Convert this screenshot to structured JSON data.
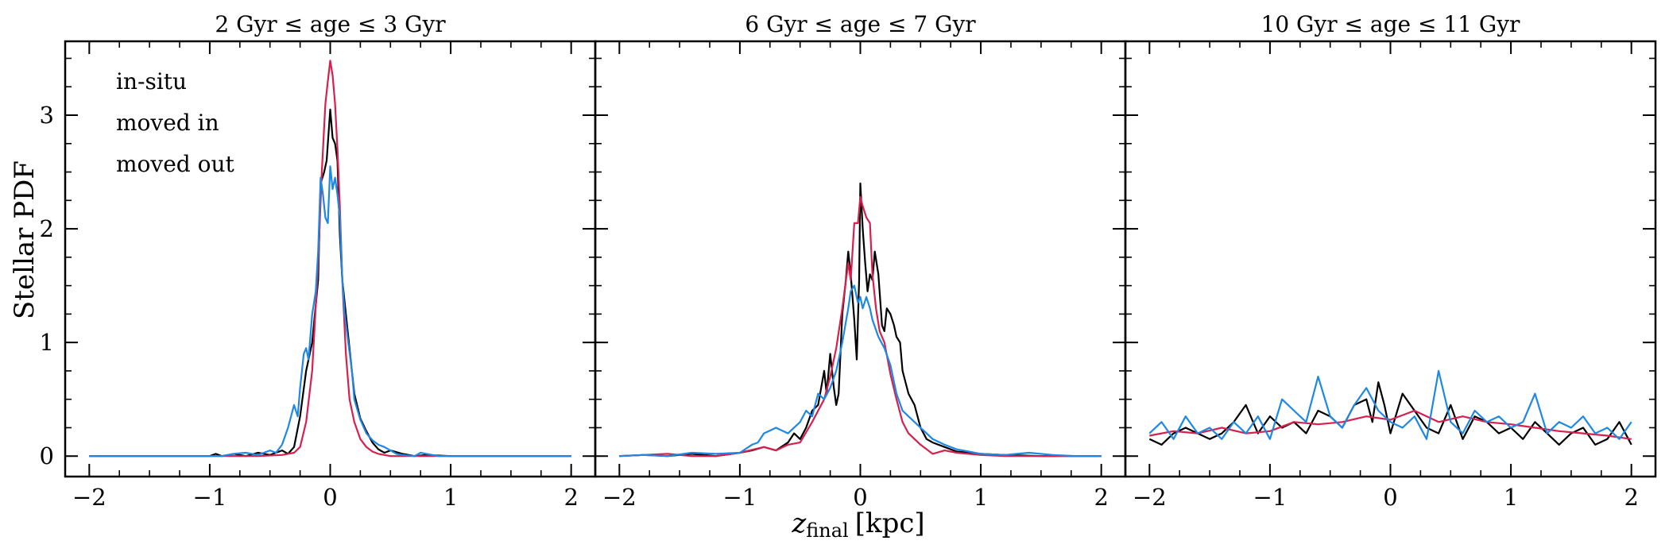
{
  "figure": {
    "ylabel": "Stellar PDF",
    "xlabel_main": "z",
    "xlabel_sub": "final",
    "xlabel_unit": "[kpc]"
  },
  "legend": [
    {
      "label": "in-situ",
      "color": "#000000"
    },
    {
      "label": "moved in",
      "color": "#d6204e"
    },
    {
      "label": "moved out",
      "color": "#1e88e5"
    }
  ],
  "chart_data": [
    {
      "type": "line",
      "title": "2 Gyr ≤ age ≤ 3 Gyr",
      "xlim": [
        -2.2,
        2.2
      ],
      "ylim": [
        -0.18,
        3.65
      ],
      "xticks": [
        -2,
        -1,
        0,
        1,
        2
      ],
      "xtick_labels": [
        "−2",
        "−1",
        "0",
        "1",
        "2"
      ],
      "yticks": [
        0,
        1,
        2,
        3
      ],
      "ytick_labels": [
        "0",
        "1",
        "2",
        "3"
      ],
      "legend_position": "top-left",
      "series": [
        {
          "name": "in-situ",
          "color": "#000000",
          "x": [
            -2.0,
            -1.0,
            -0.95,
            -0.9,
            -0.8,
            -0.7,
            -0.6,
            -0.5,
            -0.4,
            -0.35,
            -0.3,
            -0.25,
            -0.2,
            -0.15,
            -0.1,
            -0.08,
            -0.05,
            -0.03,
            -0.01,
            0.0,
            0.02,
            0.04,
            0.06,
            0.08,
            0.1,
            0.15,
            0.2,
            0.25,
            0.3,
            0.35,
            0.4,
            0.45,
            0.5,
            0.6,
            0.7,
            0.8,
            1.0,
            2.0
          ],
          "y": [
            0.0,
            0.0,
            0.02,
            0.0,
            0.02,
            0.0,
            0.03,
            0.01,
            0.05,
            0.02,
            0.08,
            0.35,
            0.75,
            1.0,
            1.55,
            2.4,
            2.5,
            2.6,
            2.9,
            3.05,
            2.8,
            2.75,
            2.6,
            1.95,
            1.55,
            1.05,
            0.55,
            0.33,
            0.22,
            0.12,
            0.06,
            0.03,
            0.05,
            0.02,
            0.0,
            0.01,
            0.0,
            0.0
          ]
        },
        {
          "name": "moved in",
          "color": "#d6204e",
          "x": [
            -2.0,
            -0.6,
            -0.4,
            -0.3,
            -0.25,
            -0.2,
            -0.15,
            -0.1,
            -0.07,
            -0.04,
            -0.02,
            0.0,
            0.02,
            0.04,
            0.06,
            0.08,
            0.1,
            0.13,
            0.16,
            0.2,
            0.25,
            0.3,
            0.35,
            0.4,
            0.5,
            0.6,
            2.0
          ],
          "y": [
            0.0,
            0.0,
            0.01,
            0.03,
            0.08,
            0.3,
            0.75,
            1.7,
            2.5,
            3.1,
            3.3,
            3.48,
            3.35,
            3.1,
            2.7,
            2.2,
            1.55,
            0.9,
            0.5,
            0.3,
            0.15,
            0.08,
            0.04,
            0.02,
            0.0,
            0.0,
            0.0
          ]
        },
        {
          "name": "moved out",
          "color": "#1e88e5",
          "x": [
            -2.0,
            -0.9,
            -0.8,
            -0.7,
            -0.6,
            -0.5,
            -0.45,
            -0.4,
            -0.35,
            -0.3,
            -0.27,
            -0.25,
            -0.22,
            -0.2,
            -0.18,
            -0.15,
            -0.12,
            -0.1,
            -0.08,
            -0.06,
            -0.04,
            -0.02,
            0.0,
            0.02,
            0.04,
            0.06,
            0.08,
            0.1,
            0.12,
            0.15,
            0.18,
            0.2,
            0.25,
            0.3,
            0.35,
            0.4,
            0.45,
            0.5,
            0.55,
            0.6,
            0.7,
            0.75,
            0.8,
            0.9,
            1.0,
            2.0
          ],
          "y": [
            0.0,
            0.0,
            0.02,
            0.03,
            0.01,
            0.05,
            0.03,
            0.1,
            0.25,
            0.45,
            0.35,
            0.6,
            0.9,
            0.95,
            0.85,
            1.25,
            1.45,
            1.8,
            2.45,
            2.3,
            2.1,
            2.05,
            2.55,
            2.35,
            2.45,
            2.3,
            2.1,
            1.55,
            1.25,
            1.0,
            0.75,
            0.5,
            0.32,
            0.2,
            0.14,
            0.1,
            0.08,
            0.05,
            0.02,
            0.01,
            0.0,
            0.03,
            0.02,
            0.0,
            0.0,
            0.0
          ]
        }
      ]
    },
    {
      "type": "line",
      "title": "6 Gyr ≤ age ≤ 7 Gyr",
      "xlim": [
        -2.2,
        2.2
      ],
      "ylim": [
        -0.18,
        3.65
      ],
      "xticks": [
        -2,
        -1,
        0,
        1,
        2
      ],
      "xtick_labels": [
        "−2",
        "−1",
        "0",
        "1",
        "2"
      ],
      "yticks": [
        0,
        1,
        2,
        3
      ],
      "series": [
        {
          "name": "in-situ",
          "color": "#000000",
          "x": [
            -2.0,
            -1.8,
            -1.6,
            -1.4,
            -1.2,
            -1.0,
            -0.9,
            -0.8,
            -0.7,
            -0.6,
            -0.55,
            -0.5,
            -0.45,
            -0.4,
            -0.35,
            -0.3,
            -0.28,
            -0.25,
            -0.22,
            -0.2,
            -0.18,
            -0.15,
            -0.12,
            -0.1,
            -0.08,
            -0.05,
            -0.03,
            -0.01,
            0.0,
            0.02,
            0.04,
            0.06,
            0.08,
            0.1,
            0.12,
            0.15,
            0.18,
            0.2,
            0.22,
            0.25,
            0.28,
            0.3,
            0.33,
            0.35,
            0.4,
            0.45,
            0.5,
            0.55,
            0.6,
            0.7,
            0.8,
            1.0,
            1.2,
            1.5,
            1.8,
            2.0
          ],
          "y": [
            0.0,
            0.01,
            0.0,
            0.02,
            0.0,
            0.03,
            0.05,
            0.08,
            0.05,
            0.12,
            0.2,
            0.15,
            0.25,
            0.4,
            0.45,
            0.75,
            0.55,
            0.9,
            0.6,
            0.45,
            0.55,
            1.25,
            1.55,
            1.8,
            1.6,
            1.2,
            0.85,
            1.55,
            2.4,
            2.0,
            1.7,
            1.45,
            1.6,
            1.55,
            1.8,
            1.6,
            1.15,
            1.1,
            1.3,
            1.25,
            1.15,
            1.05,
            1.0,
            0.75,
            0.55,
            0.45,
            0.25,
            0.15,
            0.12,
            0.08,
            0.04,
            0.02,
            0.01,
            0.0,
            0.0,
            0.0
          ]
        },
        {
          "name": "moved in",
          "color": "#d6204e",
          "x": [
            -2.0,
            -1.8,
            -1.6,
            -1.4,
            -1.2,
            -1.0,
            -0.8,
            -0.7,
            -0.6,
            -0.5,
            -0.4,
            -0.3,
            -0.25,
            -0.2,
            -0.15,
            -0.1,
            -0.08,
            -0.05,
            -0.02,
            0.0,
            0.02,
            0.05,
            0.08,
            0.1,
            0.13,
            0.16,
            0.2,
            0.25,
            0.3,
            0.35,
            0.4,
            0.5,
            0.6,
            0.7,
            0.8,
            1.0,
            1.2,
            1.5,
            2.0
          ],
          "y": [
            0.0,
            0.01,
            0.02,
            0.0,
            0.0,
            0.03,
            0.08,
            0.05,
            0.1,
            0.12,
            0.3,
            0.5,
            0.7,
            0.95,
            1.3,
            1.7,
            1.55,
            2.05,
            2.05,
            2.28,
            2.2,
            2.1,
            2.05,
            1.6,
            1.3,
            1.1,
            1.0,
            0.72,
            0.5,
            0.3,
            0.2,
            0.1,
            0.02,
            0.05,
            0.03,
            0.01,
            0.0,
            0.0,
            0.0
          ]
        },
        {
          "name": "moved out",
          "color": "#1e88e5",
          "x": [
            -2.0,
            -1.8,
            -1.6,
            -1.4,
            -1.2,
            -1.0,
            -0.9,
            -0.85,
            -0.8,
            -0.7,
            -0.6,
            -0.5,
            -0.45,
            -0.4,
            -0.35,
            -0.3,
            -0.25,
            -0.2,
            -0.15,
            -0.1,
            -0.08,
            -0.05,
            -0.02,
            0.0,
            0.02,
            0.05,
            0.08,
            0.1,
            0.15,
            0.2,
            0.25,
            0.3,
            0.35,
            0.4,
            0.45,
            0.5,
            0.55,
            0.6,
            0.7,
            0.8,
            0.9,
            1.0,
            1.2,
            1.4,
            1.6,
            1.8,
            2.0
          ],
          "y": [
            0.0,
            0.01,
            0.0,
            0.03,
            0.02,
            0.03,
            0.1,
            0.12,
            0.2,
            0.25,
            0.2,
            0.3,
            0.4,
            0.35,
            0.55,
            0.5,
            0.6,
            0.75,
            1.0,
            1.3,
            1.45,
            1.5,
            1.35,
            1.4,
            1.3,
            1.4,
            1.3,
            1.2,
            1.05,
            0.95,
            0.8,
            0.55,
            0.4,
            0.35,
            0.3,
            0.25,
            0.2,
            0.15,
            0.1,
            0.06,
            0.04,
            0.02,
            0.01,
            0.03,
            0.01,
            0.0,
            0.0
          ]
        }
      ]
    },
    {
      "type": "line",
      "title": "10 Gyr ≤ age ≤ 11 Gyr",
      "xlim": [
        -2.2,
        2.2
      ],
      "ylim": [
        -0.18,
        3.65
      ],
      "xticks": [
        -2,
        -1,
        0,
        1,
        2
      ],
      "xtick_labels": [
        "−2",
        "−1",
        "0",
        "1",
        "2"
      ],
      "yticks": [
        0,
        1,
        2,
        3
      ],
      "series": [
        {
          "name": "in-situ",
          "color": "#000000",
          "x": [
            -2.0,
            -1.9,
            -1.8,
            -1.7,
            -1.6,
            -1.5,
            -1.4,
            -1.3,
            -1.2,
            -1.1,
            -1.0,
            -0.9,
            -0.8,
            -0.7,
            -0.6,
            -0.5,
            -0.4,
            -0.3,
            -0.2,
            -0.15,
            -0.1,
            -0.05,
            0.0,
            0.1,
            0.2,
            0.3,
            0.4,
            0.5,
            0.6,
            0.7,
            0.8,
            0.9,
            1.0,
            1.1,
            1.2,
            1.3,
            1.4,
            1.5,
            1.6,
            1.7,
            1.8,
            1.9,
            2.0
          ],
          "y": [
            0.15,
            0.1,
            0.2,
            0.25,
            0.2,
            0.15,
            0.2,
            0.3,
            0.45,
            0.2,
            0.35,
            0.25,
            0.3,
            0.2,
            0.4,
            0.35,
            0.25,
            0.45,
            0.5,
            0.3,
            0.65,
            0.45,
            0.2,
            0.55,
            0.4,
            0.25,
            0.2,
            0.45,
            0.15,
            0.35,
            0.3,
            0.2,
            0.25,
            0.15,
            0.3,
            0.2,
            0.1,
            0.2,
            0.25,
            0.1,
            0.15,
            0.3,
            0.1
          ]
        },
        {
          "name": "moved in",
          "color": "#d6204e",
          "x": [
            -2.0,
            -1.8,
            -1.6,
            -1.4,
            -1.2,
            -1.0,
            -0.8,
            -0.6,
            -0.4,
            -0.2,
            0.0,
            0.2,
            0.4,
            0.6,
            0.8,
            1.0,
            1.2,
            1.4,
            1.6,
            1.8,
            2.0
          ],
          "y": [
            0.18,
            0.22,
            0.2,
            0.25,
            0.2,
            0.22,
            0.3,
            0.28,
            0.3,
            0.35,
            0.32,
            0.4,
            0.3,
            0.35,
            0.3,
            0.28,
            0.25,
            0.22,
            0.2,
            0.18,
            0.15
          ]
        },
        {
          "name": "moved out",
          "color": "#1e88e5",
          "x": [
            -2.0,
            -1.9,
            -1.8,
            -1.7,
            -1.6,
            -1.5,
            -1.4,
            -1.3,
            -1.2,
            -1.1,
            -1.0,
            -0.9,
            -0.8,
            -0.7,
            -0.6,
            -0.5,
            -0.4,
            -0.3,
            -0.2,
            -0.1,
            0.0,
            0.1,
            0.2,
            0.3,
            0.4,
            0.5,
            0.6,
            0.7,
            0.8,
            0.9,
            1.0,
            1.1,
            1.2,
            1.3,
            1.4,
            1.5,
            1.6,
            1.7,
            1.8,
            1.9,
            2.0
          ],
          "y": [
            0.2,
            0.3,
            0.15,
            0.35,
            0.2,
            0.25,
            0.15,
            0.3,
            0.2,
            0.35,
            0.15,
            0.5,
            0.4,
            0.3,
            0.7,
            0.35,
            0.25,
            0.45,
            0.6,
            0.4,
            0.3,
            0.25,
            0.35,
            0.15,
            0.75,
            0.3,
            0.2,
            0.4,
            0.3,
            0.35,
            0.25,
            0.3,
            0.55,
            0.2,
            0.3,
            0.25,
            0.35,
            0.2,
            0.25,
            0.15,
            0.3
          ]
        }
      ]
    }
  ]
}
